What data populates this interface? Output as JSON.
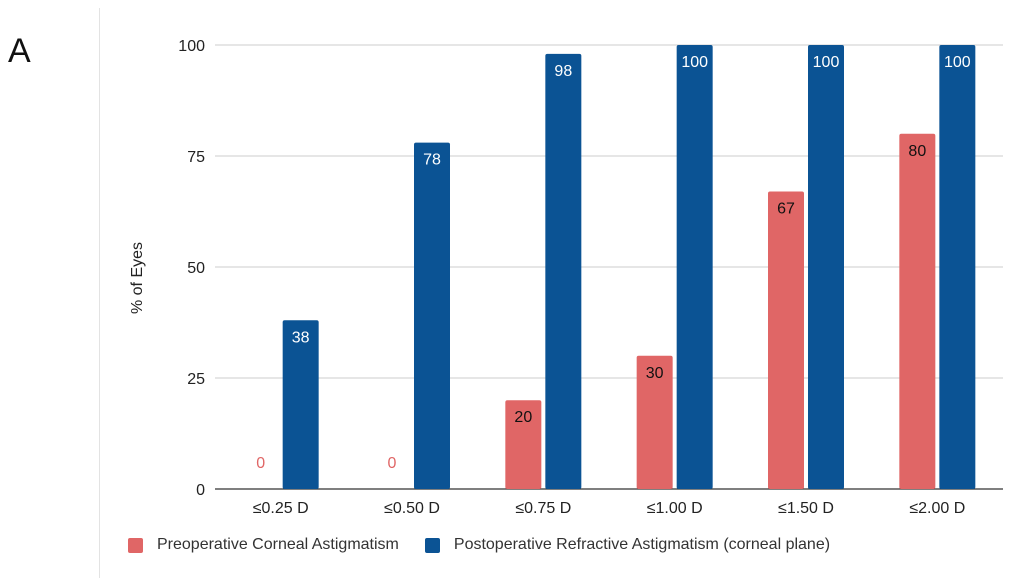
{
  "panel_label": "A",
  "colors": {
    "series0": "#e06666",
    "series1": "#0b5394",
    "grid": "#cccccc",
    "axis": "#333333"
  },
  "chart_data": {
    "type": "bar",
    "ylabel": "% of Eyes",
    "xlabel": "",
    "ylim": [
      0,
      100
    ],
    "yticks": [
      0,
      25,
      50,
      75,
      100
    ],
    "grid": true,
    "legend_position": "bottom",
    "categories": [
      "≤0.25 D",
      "≤0.50 D",
      "≤0.75 D",
      "≤1.00 D",
      "≤1.50 D",
      "≤2.00 D"
    ],
    "series": [
      {
        "name": "Preoperative Corneal Astigmatism",
        "values": [
          0,
          0,
          20,
          30,
          67,
          80
        ]
      },
      {
        "name": "Postoperative Refractive Astigmatism (corneal plane)",
        "values": [
          38,
          78,
          98,
          100,
          100,
          100
        ]
      }
    ]
  }
}
